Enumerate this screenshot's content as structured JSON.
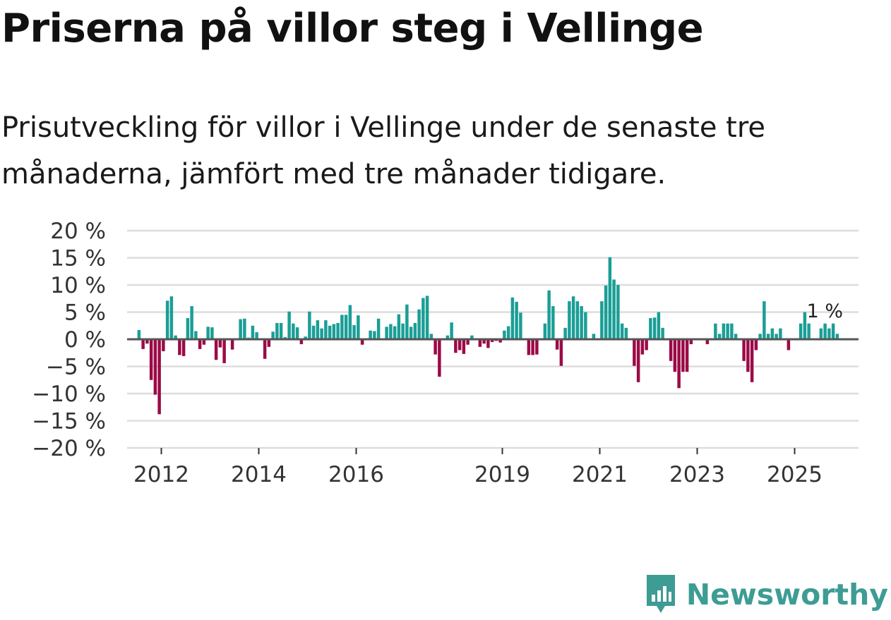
{
  "title": "Priserna på villor steg i Vellinge",
  "subtitle": "Prisutveckling för villor i Vellinge under de senaste tre månaderna, jämfört med tre månader tidigare.",
  "logo": {
    "text": "Newsworthy",
    "icon": "newsworthy-logo-icon"
  },
  "colors": {
    "positive": "#1a9e96",
    "negative": "#9b0a47",
    "zero_line": "#555555",
    "grid": "#dddddd",
    "logo": "#3d9c94"
  },
  "chart_data": {
    "type": "bar",
    "start": {
      "year": 2012,
      "month": 1
    },
    "ylim": [
      -20,
      20
    ],
    "yticks": [
      20,
      15,
      10,
      5,
      0,
      -5,
      -10,
      -15,
      -20
    ],
    "ytick_labels": [
      "20 %",
      "15 %",
      "10 %",
      "5 %",
      "0 %",
      "−5 %",
      "−10 %",
      "−15 %",
      "−20 %"
    ],
    "xtick_labels": [
      {
        "label": "2012",
        "year": 2012
      },
      {
        "label": "2014",
        "year": 2014
      },
      {
        "label": "2016",
        "year": 2016
      },
      {
        "label": "2019",
        "year": 2019
      },
      {
        "label": "2021",
        "year": 2021
      },
      {
        "label": "2023",
        "year": 2023
      },
      {
        "label": "2025",
        "year": 2025
      }
    ],
    "last_value_label": "1 %",
    "values": [
      1.7,
      -1.8,
      -0.8,
      -7.5,
      -10.2,
      -13.8,
      -2.2,
      7.1,
      7.9,
      0.7,
      -2.9,
      -3.1,
      3.9,
      6.1,
      1.5,
      -1.8,
      -1.0,
      2.3,
      2.2,
      -3.8,
      -1.5,
      -4.4,
      0.2,
      -1.9,
      0.0,
      3.7,
      3.8,
      0.3,
      2.5,
      1.3,
      0.0,
      -3.6,
      -1.4,
      1.4,
      3.0,
      3.0,
      0.4,
      5.1,
      2.9,
      2.2,
      -0.9,
      0.5,
      5.1,
      2.5,
      3.5,
      2.0,
      3.5,
      2.5,
      2.8,
      3.0,
      4.5,
      4.5,
      6.3,
      2.6,
      4.4,
      -1.0,
      0.0,
      1.6,
      1.5,
      3.8,
      0.0,
      2.3,
      2.8,
      2.4,
      4.6,
      2.9,
      6.4,
      2.3,
      3.0,
      5.5,
      7.6,
      8.0,
      1.0,
      -2.8,
      -6.9,
      0.0,
      0.7,
      3.1,
      -2.5,
      -2.0,
      -2.7,
      -1.0,
      0.7,
      0.0,
      -1.4,
      -0.8,
      -1.6,
      -0.5,
      -0.3,
      -0.6,
      1.6,
      2.4,
      7.7,
      6.9,
      4.9,
      0.0,
      -2.9,
      -2.9,
      -2.8,
      0.2,
      2.9,
      9.0,
      6.1,
      -1.9,
      -4.9,
      2.1,
      7.0,
      7.9,
      7.0,
      6.1,
      5.0,
      0.0,
      1.0,
      0.0,
      7.0,
      9.9,
      15.1,
      11.0,
      10.0,
      2.9,
      2.1,
      0.0,
      -4.9,
      -7.9,
      -2.8,
      -2.0,
      3.9,
      4.0,
      5.0,
      2.1,
      0.0,
      -4.0,
      -6.0,
      -9.0,
      -6.0,
      -6.0,
      -0.9,
      0.0,
      0.0,
      0.0,
      -0.9,
      0.0,
      2.9,
      1.0,
      2.9,
      2.9,
      2.9,
      1.0,
      0.0,
      -4.0,
      -6.0,
      -7.9,
      -2.0,
      1.0,
      7.0,
      1.0,
      2.0,
      1.0,
      2.0,
      0.0,
      -2.0,
      0.0,
      0.0,
      2.9,
      5.0,
      2.9,
      0.0,
      0.0,
      2.0,
      2.9,
      2.0,
      2.9,
      1.0
    ]
  }
}
